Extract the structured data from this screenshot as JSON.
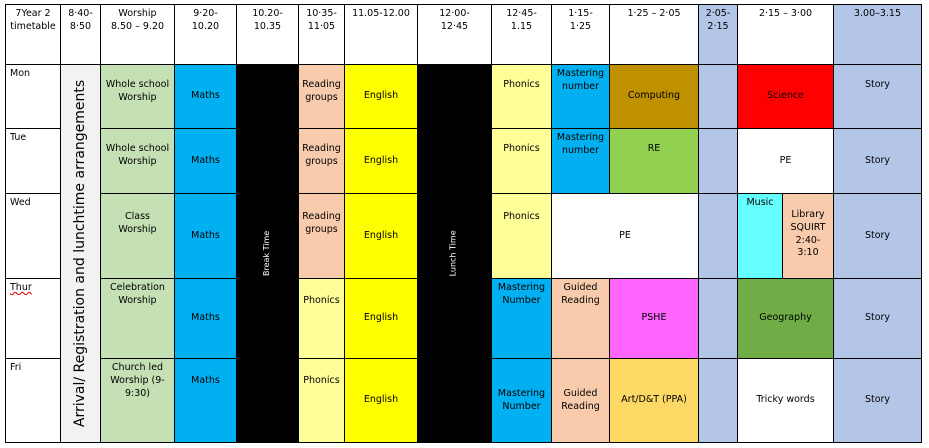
{
  "headers": {
    "title": "7Year 2 timetable",
    "h1": "8·40-\n8·50",
    "h2": "Worship\n8.50 – 9.20",
    "h3": "9·20-\n10.20",
    "h4": "10.20-\n10.35",
    "h5": "10·35-\n11·05",
    "h6": "11.05-12.00",
    "h7": "12·00-\n12·45",
    "h8": "12·45-\n1.15",
    "h9": "1·15-\n1·25",
    "h10": "1·25 – 2·05",
    "h11": "2·05-\n2·15",
    "h12": "2·15 – 3·00",
    "h13": "3.00–3.15"
  },
  "days": [
    "Mon",
    "Tue",
    "Wed",
    "Thur",
    "Fri"
  ],
  "vertical": {
    "arrival": "Arrival/ Registration and lunchtime arrangements",
    "break": "Break Time",
    "lunch": "Lunch Time"
  },
  "rows": {
    "mon": {
      "worship": "Whole school\nWorship",
      "maths": "Maths",
      "reading": "Reading\ngroups",
      "english": "English",
      "phonics": "Phonics",
      "mastering": "Mastering\nnumber",
      "computing": "Computing",
      "science": "Science",
      "story": "Story"
    },
    "tue": {
      "worship": "Whole school\nWorship",
      "maths": "Maths",
      "reading": "Reading\ngroups",
      "english": "English",
      "phonics": "Phonics",
      "mastering": "Mastering\nnumber",
      "re": "RE",
      "pe": "PE",
      "story": "Story"
    },
    "wed": {
      "worship": "Class\nWorship",
      "maths": "Maths",
      "reading": "Reading\ngroups",
      "english": "English",
      "phonics": "Phonics",
      "pe": "PE",
      "music": "Music",
      "library": "Library\nSQUIRT\n2:40-\n3:10",
      "story": "Story"
    },
    "thu": {
      "worship": "Celebration\nWorship",
      "maths": "Maths",
      "phonics": "Phonics",
      "english": "English",
      "mastering": "Mastering\nNumber",
      "guided": "Guided\nReading",
      "pshe": "PSHE",
      "geography": "Geography",
      "story": "Story"
    },
    "fri": {
      "worship": "Church led\nWorship (9-\n9:30)",
      "maths": "Maths",
      "phonics": "Phonics",
      "english": "English",
      "mastering": "Mastering\nNumber",
      "guided": "Guided\nReading",
      "art": "Art/D&T (PPA)",
      "tricky": "Tricky words",
      "story": "Story"
    }
  },
  "colors": {
    "worship": "#c5e0b4",
    "maths": "#00b0f0",
    "break": "#000000",
    "reading": "#f8cbad",
    "english": "#ffff00",
    "phonics": "#ffff99",
    "mastering": "#00b0f0",
    "computing": "#bf9000",
    "short": "#b4c6e7",
    "science": "#ff0000",
    "story": "#b4c6e7",
    "re": "#92d050",
    "music": "#66ffff",
    "pshe": "#ff66ff",
    "geography": "#70ad47",
    "art": "#ffd966",
    "arrival": "#f2f2f2"
  }
}
